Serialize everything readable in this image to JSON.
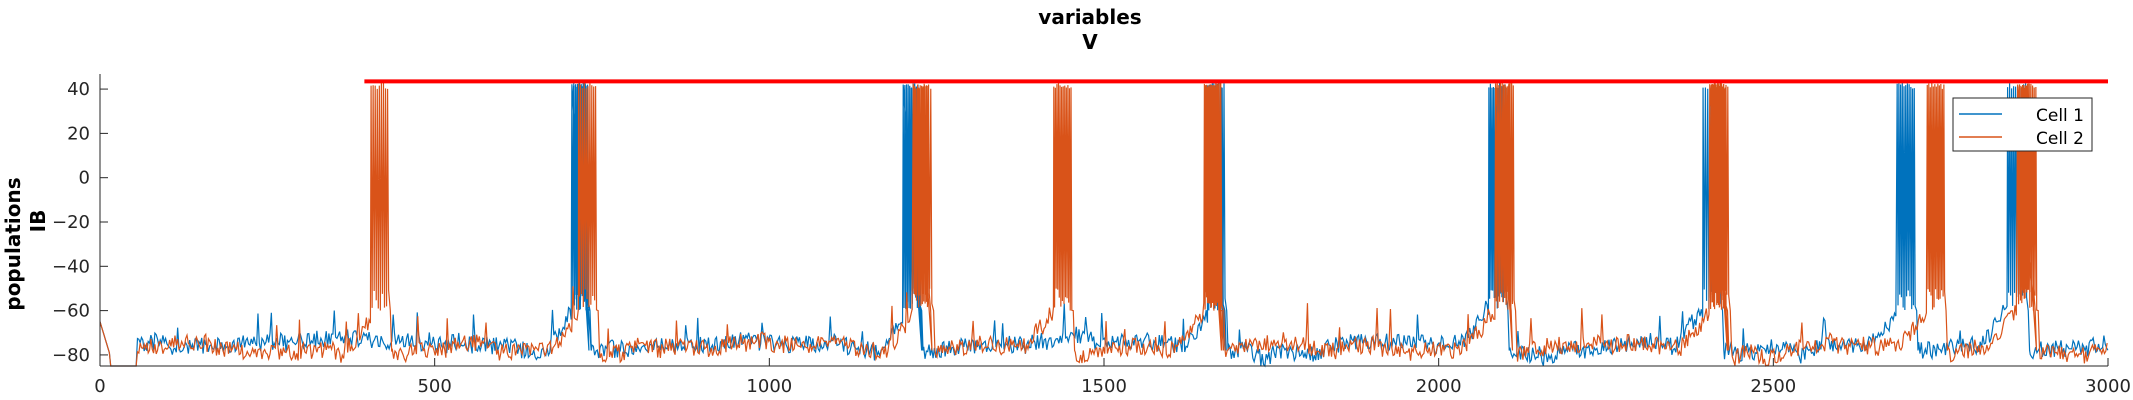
{
  "chart_data": {
    "type": "line",
    "title": [
      "variables",
      "V"
    ],
    "ylabel": [
      "populations",
      "IB"
    ],
    "xlabel": "",
    "xlim": [
      0,
      3000
    ],
    "ylim": [
      -85,
      45
    ],
    "xticks": [
      0,
      500,
      1000,
      1500,
      2000,
      2500,
      3000
    ],
    "yticks": [
      -80,
      -60,
      -40,
      -20,
      0,
      20,
      40
    ],
    "xtick_labels": [
      "0",
      "500",
      "1000",
      "1500",
      "2000",
      "2500",
      "3000"
    ],
    "ytick_labels": [
      "−80",
      "−60",
      "−40",
      "−20",
      "0",
      "20",
      "40"
    ],
    "grid": false,
    "legend_position": "top-right",
    "series": [
      {
        "name": "Cell 1",
        "color": "#0072BD",
        "baseline": -75,
        "burst_times": [
          705,
          1200,
          1655,
          2075,
          2395,
          2685,
          2850
        ]
      },
      {
        "name": "Cell 2",
        "color": "#D95319",
        "baseline": -76,
        "burst_times": [
          405,
          715,
          1215,
          1425,
          1650,
          2085,
          2405,
          2730,
          2865
        ]
      }
    ],
    "reference_line": {
      "y": 43.5,
      "color": "#FF0000"
    },
    "x_start_values_clipped_below_axis": [
      0,
      55
    ]
  }
}
